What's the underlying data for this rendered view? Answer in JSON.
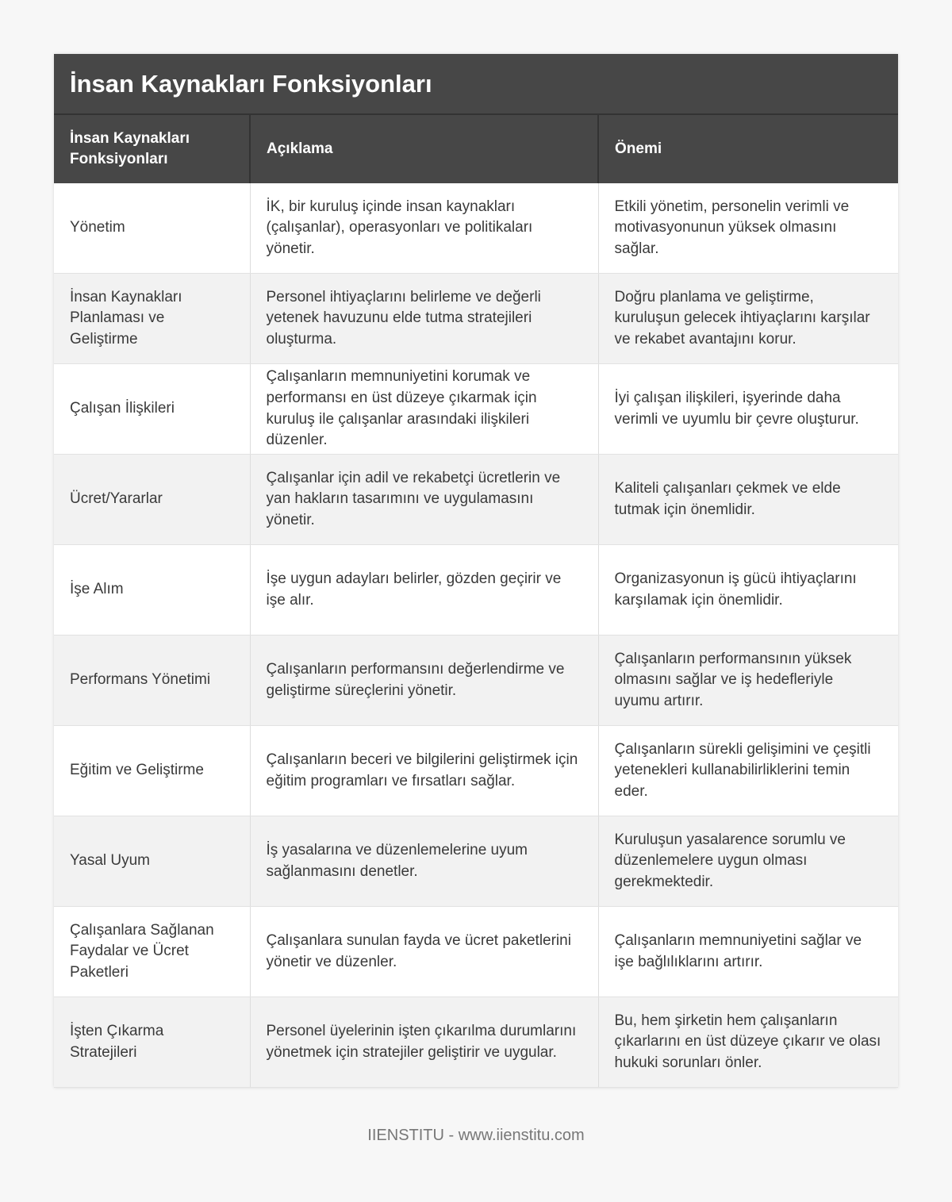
{
  "title": "İnsan Kaynakları Fonksiyonları",
  "columns": [
    "İnsan Kaynakları Fonksiyonları",
    "Açıklama",
    "Önemi"
  ],
  "rows": [
    [
      "Yönetim",
      "İK, bir kuruluş içinde insan kaynakları (çalışanlar), operasyonları ve politikaları yönetir.",
      "Etkili yönetim, personelin verimli ve motivasyonunun yüksek olmasını sağlar."
    ],
    [
      "İnsan Kaynakları Planlaması ve Geliştirme",
      "Personel ihtiyaçlarını belirleme ve değerli yetenek havuzunu elde tutma stratejileri oluşturma.",
      "Doğru planlama ve geliştirme, kuruluşun gelecek ihtiyaçlarını karşılar ve rekabet avantajını korur."
    ],
    [
      "Çalışan İlişkileri",
      "Çalışanların memnuniyetini korumak ve performansı en üst düzeye çıkarmak için kuruluş ile çalışanlar arasındaki ilişkileri düzenler.",
      "İyi çalışan ilişkileri, işyerinde daha verimli ve uyumlu bir çevre oluşturur."
    ],
    [
      "Ücret/Yararlar",
      "Çalışanlar için adil ve rekabetçi ücretlerin ve yan hakların tasarımını ve uygulamasını yönetir.",
      "Kaliteli çalışanları çekmek ve elde tutmak için önemlidir."
    ],
    [
      "İşe Alım",
      "İşe uygun adayları belirler, gözden geçirir ve işe alır.",
      "Organizasyonun iş gücü ihtiyaçlarını karşılamak için önemlidir."
    ],
    [
      "Performans Yönetimi",
      "Çalışanların performansını değerlendirme ve geliştirme süreçlerini yönetir.",
      "Çalışanların performansının yüksek olmasını sağlar ve iş hedefleriyle uyumu artırır."
    ],
    [
      "Eğitim ve Geliştirme",
      "Çalışanların beceri ve bilgilerini geliştirmek için eğitim programları ve fırsatları sağlar.",
      "Çalışanların sürekli gelişimini ve çeşitli yetenekleri kullanabilirliklerini temin eder."
    ],
    [
      "Yasal Uyum",
      "İş yasalarına ve düzenlemelerine uyum sağlanmasını denetler.",
      "Kuruluşun yasalarence sorumlu ve düzenlemelere uygun olması gerekmektedir."
    ],
    [
      "Çalışanlara Sağlanan Faydalar ve Ücret Paketleri",
      "Çalışanlara sunulan fayda ve ücret paketlerini yönetir ve düzenler.",
      "Çalışanların memnuniyetini sağlar ve işe bağlılıklarını artırır."
    ],
    [
      "İşten Çıkarma Stratejileri",
      "Personel üyelerinin işten çıkarılma durumlarını yönetmek için stratejiler geliştirir ve uygular.",
      "Bu, hem şirketin hem çalışanların çıkarlarını en üst düzeye çıkarır ve olası hukuki sorunları önler."
    ]
  ],
  "footer": "IIENSTITU - www.iienstitu.com",
  "colors": {
    "header_bg": "#474747",
    "row_alt": "#f2f2f2",
    "page_bg": "#f7f7f7"
  }
}
